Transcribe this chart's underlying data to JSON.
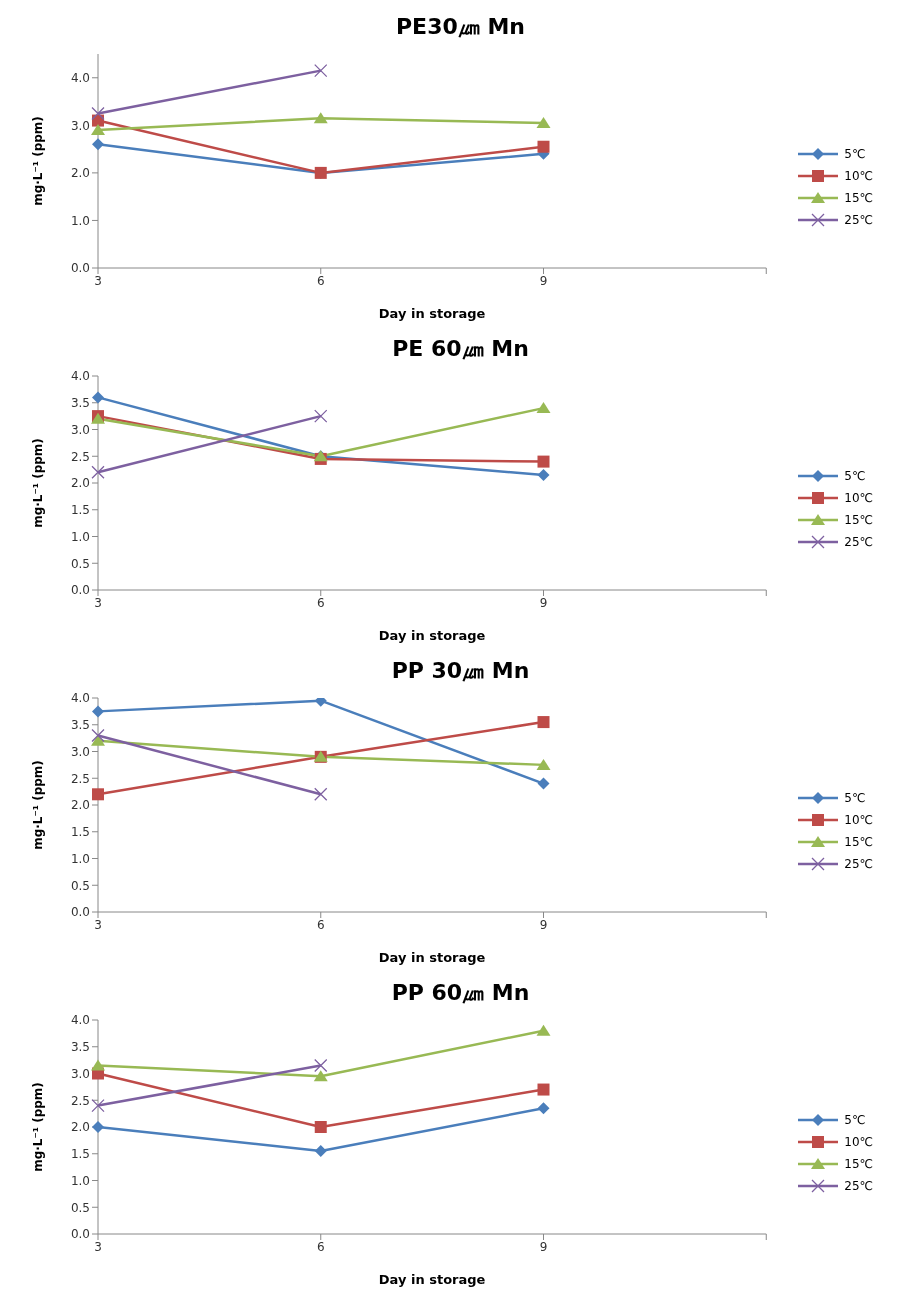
{
  "chart_data": [
    {
      "type": "line",
      "title": "PE30㎛ Mn",
      "xlabel": "Day in storage",
      "ylabel": "mg·L⁻¹ (ppm)",
      "categories": [
        "3",
        "6",
        "9",
        null
      ],
      "ylim": [
        0,
        4.5
      ],
      "yticks": [
        {
          "value": 0,
          "label": "0.0"
        },
        {
          "value": 1,
          "label": "1.0"
        },
        {
          "value": 2,
          "label": "2.0"
        },
        {
          "value": 3,
          "label": "3.0"
        },
        {
          "value": 4,
          "label": "4.0"
        }
      ],
      "grid": false,
      "legend": "right",
      "line_style": "solid",
      "series": [
        {
          "name": "5℃",
          "color": "#4a7ebb",
          "marker": "diamond",
          "values": [
            2.6,
            2.0,
            2.4,
            null
          ]
        },
        {
          "name": "10℃",
          "color": "#be4b48",
          "marker": "square",
          "values": [
            3.1,
            2.0,
            2.55,
            null
          ]
        },
        {
          "name": "15℃",
          "color": "#98b954",
          "marker": "triangle",
          "values": [
            2.9,
            3.15,
            3.05,
            null
          ]
        },
        {
          "name": "25℃",
          "color": "#7d60a0",
          "marker": "cross",
          "values": [
            3.25,
            4.15,
            null,
            null
          ]
        }
      ]
    },
    {
      "type": "line",
      "title": "PE 60㎛ Mn",
      "xlabel": "Day in storage",
      "ylabel": "mg·L⁻¹ (ppm)",
      "categories": [
        "3",
        "6",
        "9",
        null
      ],
      "ylim": [
        0,
        4
      ],
      "yticks": [
        {
          "value": 0,
          "label": "0.0"
        },
        {
          "value": 0.5,
          "label": "0.5"
        },
        {
          "value": 1,
          "label": "1.0"
        },
        {
          "value": 1.5,
          "label": "1.5"
        },
        {
          "value": 2,
          "label": "2.0"
        },
        {
          "value": 2.5,
          "label": "2.5"
        },
        {
          "value": 3,
          "label": "3.0"
        },
        {
          "value": 3.5,
          "label": "3.5"
        },
        {
          "value": 4,
          "label": "4.0"
        }
      ],
      "grid": false,
      "legend": "right",
      "line_style": "solid",
      "series": [
        {
          "name": "5℃",
          "color": "#4a7ebb",
          "marker": "diamond",
          "values": [
            3.6,
            2.5,
            2.15,
            null
          ]
        },
        {
          "name": "10℃",
          "color": "#be4b48",
          "marker": "square",
          "values": [
            3.25,
            2.45,
            2.4,
            null
          ]
        },
        {
          "name": "15℃",
          "color": "#98b954",
          "marker": "triangle",
          "values": [
            3.2,
            2.5,
            3.4,
            null
          ]
        },
        {
          "name": "25℃",
          "color": "#7d60a0",
          "marker": "cross",
          "values": [
            2.2,
            3.25,
            null,
            null
          ]
        }
      ]
    },
    {
      "type": "line",
      "title": "PP 30㎛ Mn",
      "xlabel": "Day in storage",
      "ylabel": "mg·L⁻¹ (ppm)",
      "categories": [
        "3",
        "6",
        "9",
        null
      ],
      "ylim": [
        0,
        4
      ],
      "yticks": [
        {
          "value": 0,
          "label": "0.0"
        },
        {
          "value": 0.5,
          "label": "0.5"
        },
        {
          "value": 1,
          "label": "1.0"
        },
        {
          "value": 1.5,
          "label": "1.5"
        },
        {
          "value": 2,
          "label": "2.0"
        },
        {
          "value": 2.5,
          "label": "2.5"
        },
        {
          "value": 3,
          "label": "3.0"
        },
        {
          "value": 3.5,
          "label": "3.5"
        },
        {
          "value": 4,
          "label": "4.0"
        }
      ],
      "grid": false,
      "legend": "right",
      "line_style": "solid",
      "series": [
        {
          "name": "5℃",
          "color": "#4a7ebb",
          "marker": "diamond",
          "values": [
            3.75,
            3.95,
            2.4,
            null
          ]
        },
        {
          "name": "10℃",
          "color": "#be4b48",
          "marker": "square",
          "values": [
            2.2,
            2.9,
            3.55,
            null
          ]
        },
        {
          "name": "15℃",
          "color": "#98b954",
          "marker": "triangle",
          "values": [
            3.2,
            2.9,
            2.75,
            null
          ]
        },
        {
          "name": "25℃",
          "color": "#7d60a0",
          "marker": "cross",
          "values": [
            3.3,
            2.2,
            null,
            null
          ]
        }
      ]
    },
    {
      "type": "line",
      "title": "PP 60㎛ Mn",
      "xlabel": "Day in storage",
      "ylabel": "mg·L⁻¹ (ppm)",
      "categories": [
        "3",
        "6",
        "9",
        null
      ],
      "ylim": [
        0,
        4
      ],
      "yticks": [
        {
          "value": 0,
          "label": "0.0"
        },
        {
          "value": 0.5,
          "label": "0.5"
        },
        {
          "value": 1,
          "label": "1.0"
        },
        {
          "value": 1.5,
          "label": "1.5"
        },
        {
          "value": 2,
          "label": "2.0"
        },
        {
          "value": 2.5,
          "label": "2.5"
        },
        {
          "value": 3,
          "label": "3.0"
        },
        {
          "value": 3.5,
          "label": "3.5"
        },
        {
          "value": 4,
          "label": "4.0"
        }
      ],
      "grid": false,
      "legend": "right",
      "line_style": "solid",
      "series": [
        {
          "name": "5℃",
          "color": "#4a7ebb",
          "marker": "diamond",
          "values": [
            2.0,
            1.55,
            2.35,
            null
          ]
        },
        {
          "name": "10℃",
          "color": "#be4b48",
          "marker": "square",
          "values": [
            3.0,
            2.0,
            2.7,
            null
          ]
        },
        {
          "name": "15℃",
          "color": "#98b954",
          "marker": "triangle",
          "values": [
            3.15,
            2.95,
            3.8,
            null
          ]
        },
        {
          "name": "25℃",
          "color": "#7d60a0",
          "marker": "cross",
          "values": [
            2.4,
            3.15,
            null,
            null
          ]
        }
      ]
    }
  ]
}
